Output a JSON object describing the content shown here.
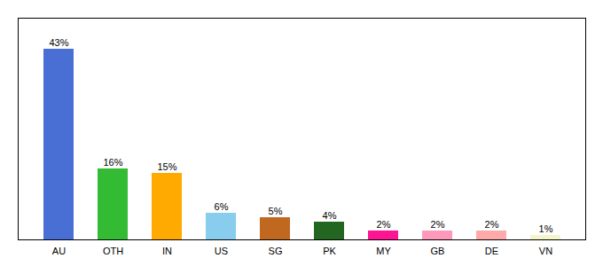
{
  "chart_data": {
    "type": "bar",
    "categories": [
      "AU",
      "OTH",
      "IN",
      "US",
      "SG",
      "PK",
      "MY",
      "GB",
      "DE",
      "VN"
    ],
    "values": [
      43,
      16,
      15,
      6,
      5,
      4,
      2,
      2,
      2,
      1
    ],
    "value_labels": [
      "43%",
      "16%",
      "15%",
      "6%",
      "5%",
      "4%",
      "2%",
      "2%",
      "2%",
      "1%"
    ],
    "colors": [
      "#4a6fd4",
      "#33bb33",
      "#ffaa00",
      "#88ccee",
      "#c06820",
      "#226622",
      "#ff1493",
      "#ff99bb",
      "#ffaaaa",
      "#f5f5cc"
    ],
    "ylim": [
      0,
      50
    ],
    "data_labels": true,
    "tick_labels": "x",
    "grid": false
  }
}
